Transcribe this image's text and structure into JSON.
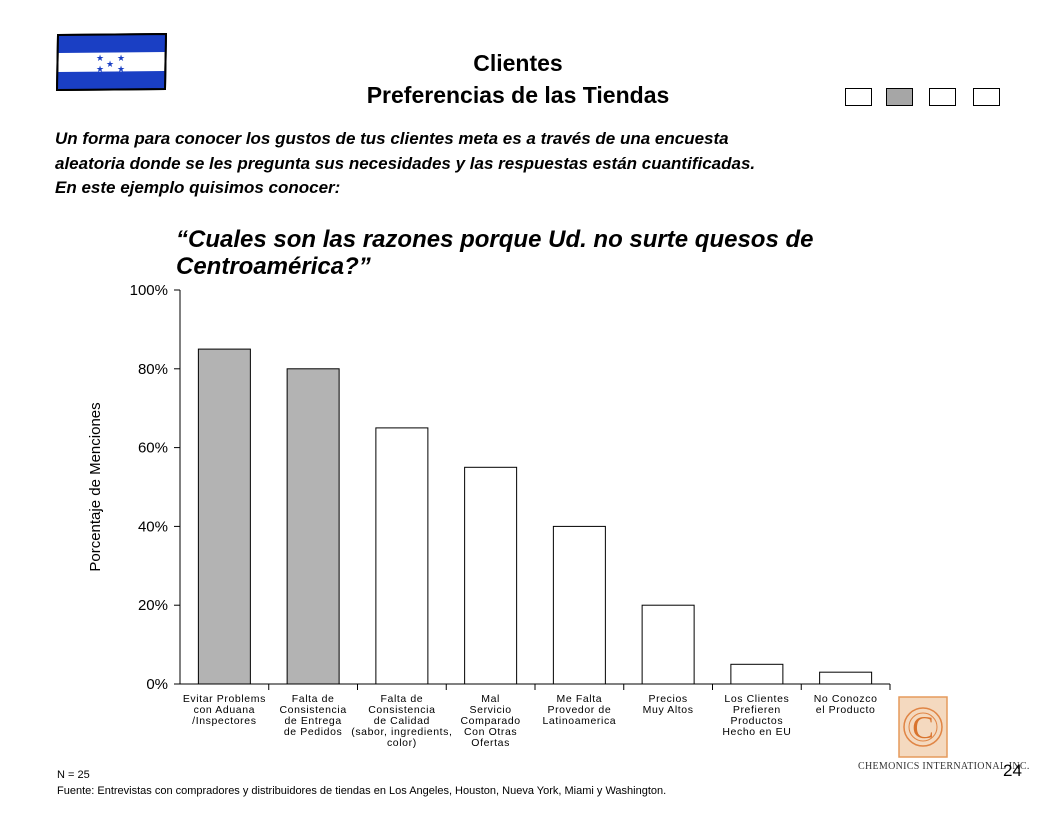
{
  "header": {
    "title_line1": "Clientes",
    "title_line2": "Preferencias de las Tiendas",
    "flag_icon": "honduras-flag-icon",
    "nav_active_index": 1,
    "nav_count": 4
  },
  "intro": {
    "line1": "Un forma para conocer los gustos de tus clientes meta es a través de una encuesta",
    "line2": "aleatoria donde se les pregunta sus necesidades y las respuestas están cuantificadas.",
    "line3": "En este ejemplo quisimos conocer:"
  },
  "question": {
    "line1": "“Cuales son las razones porque Ud. no surte quesos de",
    "line2": "Centroamérica?”"
  },
  "chart_data": {
    "type": "bar",
    "title": "",
    "ylabel": "Porcentaje de Menciones",
    "xlabel": "",
    "ylim": [
      0,
      100
    ],
    "yticks": [
      "0%",
      "20%",
      "40%",
      "60%",
      "80%",
      "100%"
    ],
    "categories": [
      [
        "Evitar Problems",
        "con Aduana",
        "/Inspectores"
      ],
      [
        "Falta de",
        "Consistencia",
        "de Entrega",
        "de Pedidos"
      ],
      [
        "Falta de",
        "Consistencia",
        "de Calidad",
        "(sabor, ingredients,",
        "color)"
      ],
      [
        "Mal",
        "Servicio",
        "Comparado",
        "Con Otras",
        "Ofertas"
      ],
      [
        "Me Falta",
        "Provedor de",
        "Latinoamerica"
      ],
      [
        "Precios",
        "Muy Altos"
      ],
      [
        "Los Clientes",
        "Prefieren",
        "Productos",
        "Hecho en EU"
      ],
      [
        "No Conozco",
        "el Producto"
      ]
    ],
    "values": [
      85,
      80,
      65,
      55,
      40,
      20,
      5,
      3
    ],
    "highlighted": [
      true,
      true,
      false,
      false,
      false,
      false,
      false,
      false
    ],
    "colors": {
      "highlight": "#b3b3b3",
      "normal": "#ffffff",
      "stroke": "#000000"
    },
    "grid": false
  },
  "footer": {
    "n": "N = 25",
    "source": "Fuente:   Entrevistas con compradores y distribuidores de tiendas en Los Angeles, Houston, Nueva York, Miami y Washington.",
    "company": "CHEMONICS INTERNATIONAL INC.",
    "logo_letter": "C",
    "page": "24"
  }
}
